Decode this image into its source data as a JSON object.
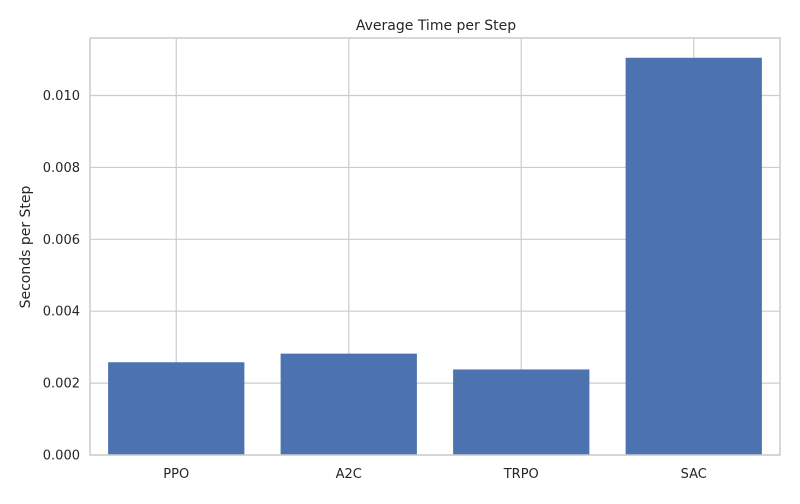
{
  "chart_data": {
    "type": "bar",
    "title": "Average Time per Step",
    "xlabel": "",
    "ylabel": "Seconds per Step",
    "categories": [
      "PPO",
      "A2C",
      "TRPO",
      "SAC"
    ],
    "values": [
      0.00258,
      0.00282,
      0.00238,
      0.01105
    ],
    "ylim": [
      0,
      0.0116
    ],
    "yticks": [
      0.0,
      0.002,
      0.004,
      0.006,
      0.008,
      0.01
    ],
    "ytick_labels": [
      "0.000",
      "0.002",
      "0.004",
      "0.006",
      "0.008",
      "0.010"
    ],
    "grid": true,
    "bar_color": "#4c72b0",
    "grid_color": "#cccccc",
    "axis_color": "#cccccc"
  }
}
